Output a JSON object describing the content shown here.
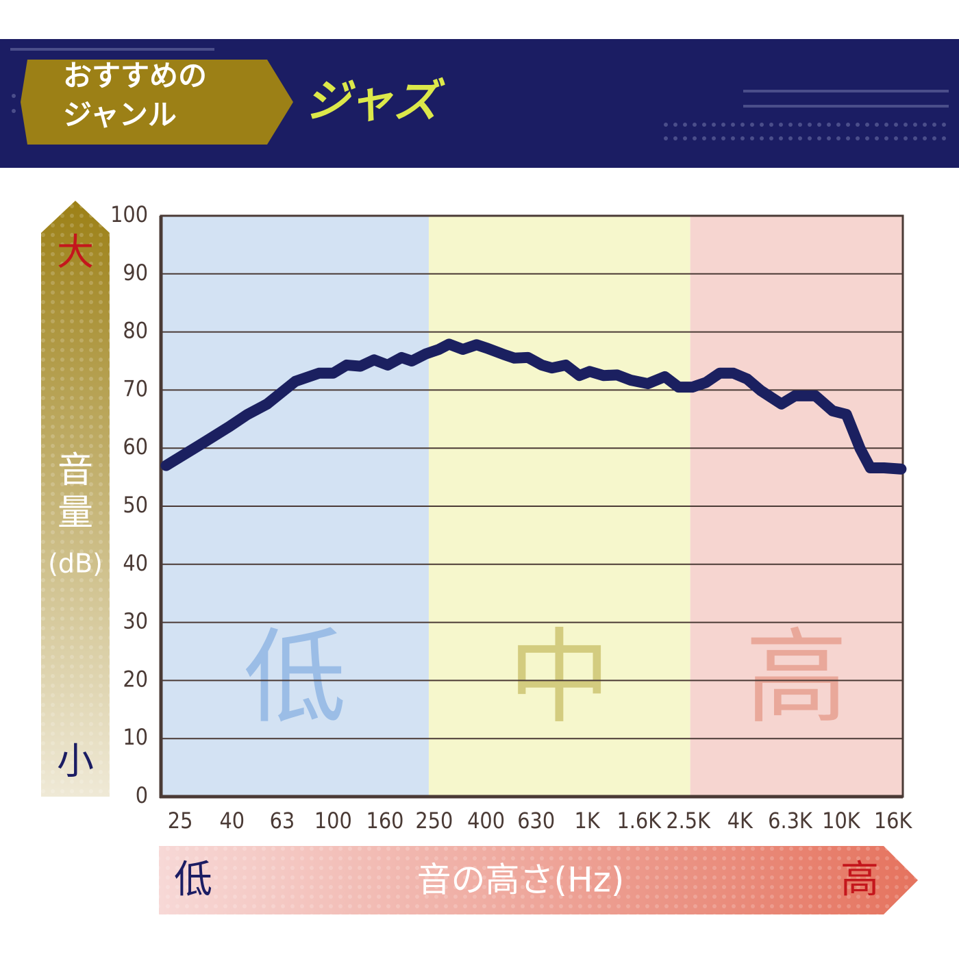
{
  "header": {
    "badge_lines": [
      "おすすめの",
      "ジャンル"
    ],
    "genre": "ジャズ"
  },
  "chart_data": {
    "type": "line",
    "ylabel_lines": [
      "音",
      "量",
      "(dB)"
    ],
    "ylabel_high": "大",
    "ylabel_low": "小",
    "xlabel": "音の高さ(Hz)",
    "xlabel_low": "低",
    "xlabel_high": "高",
    "xscale": "log",
    "xlim": [
      21,
      17500
    ],
    "xticks": [
      25,
      40,
      63,
      100,
      160,
      250,
      400,
      630,
      {
        "value": 1000,
        "label": "1K"
      },
      {
        "value": 1600,
        "label": "1.6K"
      },
      {
        "value": 2500,
        "label": "2.5K"
      },
      {
        "value": 4000,
        "label": "4K"
      },
      {
        "value": 6300,
        "label": "6.3K"
      },
      {
        "value": 10000,
        "label": "10K"
      },
      {
        "value": 16000,
        "label": "16K"
      }
    ],
    "ylim": [
      0,
      100
    ],
    "yticks": [
      0,
      10,
      20,
      30,
      40,
      50,
      60,
      70,
      80,
      90,
      100
    ],
    "grid": true,
    "bands": [
      {
        "label": "低",
        "from": 21,
        "to": 238,
        "color": "#d3e2f3",
        "label_color": "#9bbde6"
      },
      {
        "label": "中",
        "from": 238,
        "to": 2547,
        "color": "#f6f7cc",
        "label_color": "#d3cc7f"
      },
      {
        "label": "高",
        "from": 2547,
        "to": 17500,
        "color": "#f6d5d0",
        "label_color": "#e9a89a"
      }
    ],
    "x": [
      22,
      30,
      39,
      46,
      55,
      71,
      88,
      100,
      113,
      128,
      145,
      164,
      186,
      204,
      231,
      261,
      286,
      324,
      367,
      404,
      471,
      517,
      585,
      663,
      727,
      824,
      932,
      1023,
      1159,
      1312,
      1486,
      1734,
      2023,
      2291,
      2594,
      2938,
      3327,
      3767,
      4266,
      4831,
      5821,
      6577,
      7925,
      9268,
      10495,
      11885,
      13032,
      14757,
      17219
    ],
    "series": [
      {
        "color": "#1b2060",
        "values": [
          57.0,
          60.6,
          63.7,
          65.8,
          67.6,
          71.5,
          72.9,
          72.9,
          74.3,
          74.1,
          75.2,
          74.3,
          75.6,
          75.0,
          76.2,
          77.0,
          77.9,
          77.0,
          77.8,
          77.2,
          76.1,
          75.5,
          75.6,
          74.3,
          73.8,
          74.3,
          72.5,
          73.2,
          72.5,
          72.6,
          71.7,
          71.1,
          72.3,
          70.5,
          70.5,
          71.3,
          72.9,
          72.9,
          71.9,
          69.9,
          67.6,
          69.0,
          69.0,
          66.4,
          65.8,
          59.9,
          56.6,
          56.6,
          56.4
        ]
      }
    ]
  }
}
